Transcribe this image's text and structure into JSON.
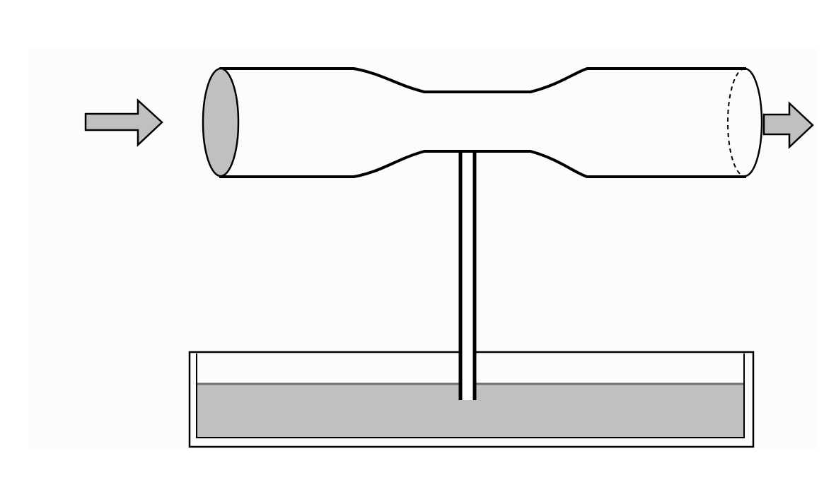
{
  "diagram": {
    "colors": {
      "background": "#ffffff",
      "canvas": "#fcfcfc",
      "stroke": "#000000",
      "fill_gray": "#c0c0c0",
      "liquid": "#c0c0c0",
      "liquid_surface": "#707070"
    },
    "elements": {
      "inlet_arrow": "right-arrow-icon",
      "outlet_arrow": "right-arrow-icon",
      "pipe": "venturi-tube",
      "inlet_face": "filled-ellipse",
      "outlet_face": "dashed-ellipse",
      "capillary": "vertical-tube",
      "basin": "open-container",
      "liquid": "liquid-fill"
    }
  }
}
